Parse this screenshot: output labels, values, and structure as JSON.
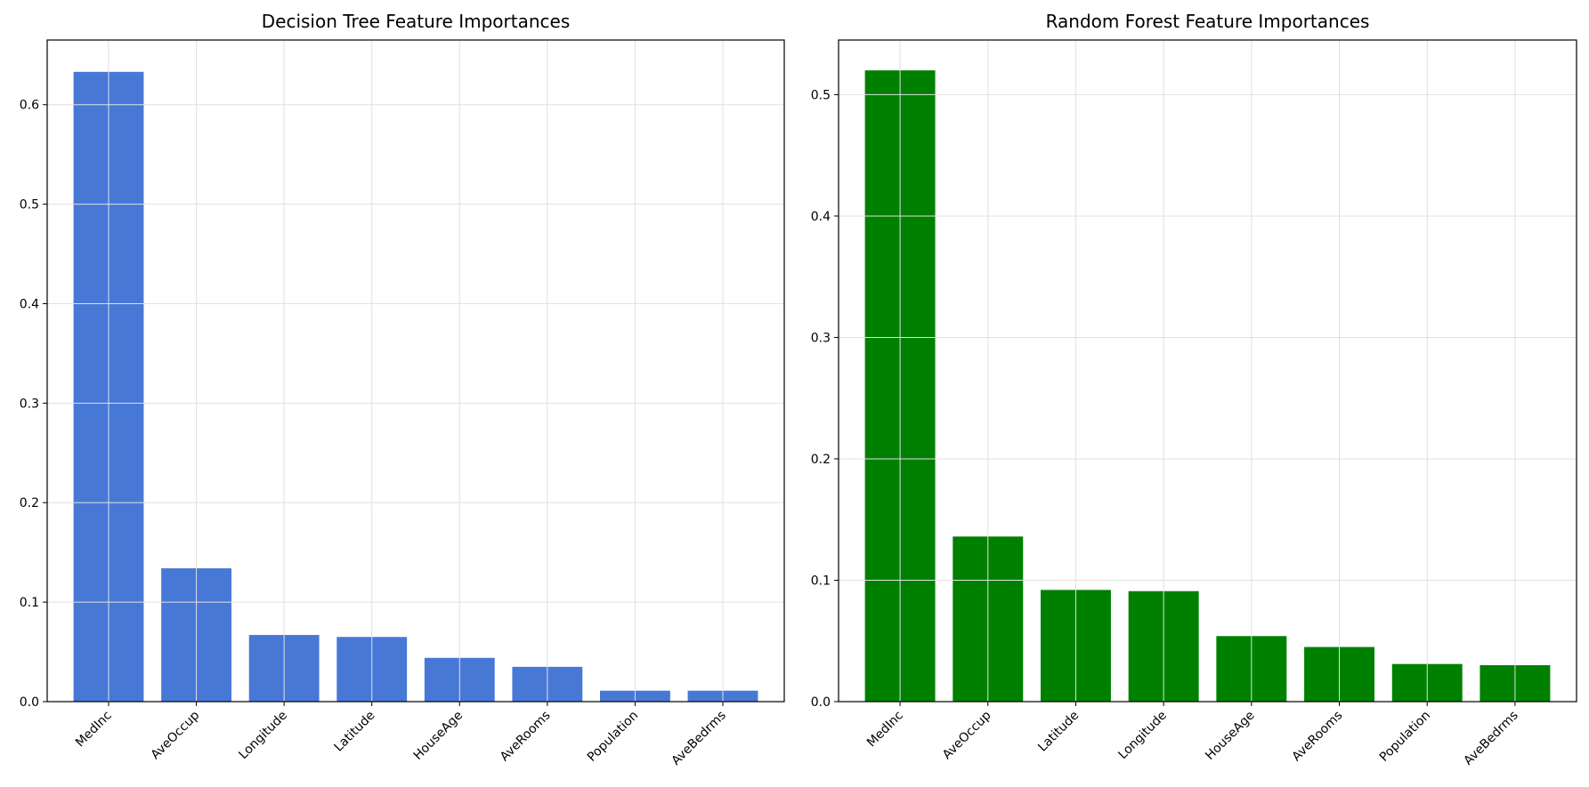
{
  "chart_data": [
    {
      "type": "bar",
      "title": "Decision Tree Feature Importances",
      "xlabel": "",
      "ylabel": "",
      "categories": [
        "MedInc",
        "AveOccup",
        "Longitude",
        "Latitude",
        "HouseAge",
        "AveRooms",
        "Population",
        "AveBedrms"
      ],
      "values": [
        0.633,
        0.134,
        0.067,
        0.065,
        0.044,
        0.035,
        0.011,
        0.011
      ],
      "ylim": [
        0,
        0.665
      ],
      "yticks": [
        "0.0",
        "0.1",
        "0.2",
        "0.3",
        "0.4",
        "0.5",
        "0.6"
      ],
      "grid": true,
      "color": "#4878d6"
    },
    {
      "type": "bar",
      "title": "Random Forest Feature Importances",
      "xlabel": "",
      "ylabel": "",
      "categories": [
        "MedInc",
        "AveOccup",
        "Latitude",
        "Longitude",
        "HouseAge",
        "AveRooms",
        "Population",
        "AveBedrms"
      ],
      "values": [
        0.52,
        0.136,
        0.092,
        0.091,
        0.054,
        0.045,
        0.031,
        0.03
      ],
      "ylim": [
        0,
        0.545
      ],
      "yticks": [
        "0.0",
        "0.1",
        "0.2",
        "0.3",
        "0.4",
        "0.5"
      ],
      "grid": true,
      "color": "#008000"
    }
  ]
}
